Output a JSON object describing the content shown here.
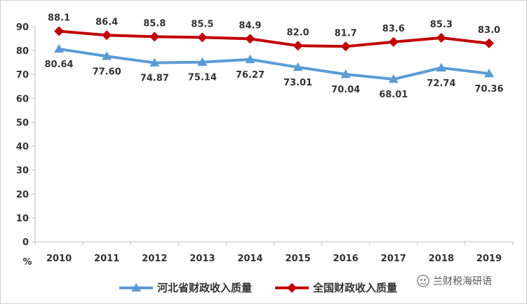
{
  "chart_data": {
    "type": "line",
    "title": "",
    "xlabel": "",
    "ylabel": "%",
    "ylim": [
      0,
      90
    ],
    "yticks": [
      0,
      10,
      20,
      30,
      40,
      50,
      60,
      70,
      80,
      90
    ],
    "categories": [
      "2010",
      "2011",
      "2012",
      "2013",
      "2014",
      "2015",
      "2016",
      "2017",
      "2018",
      "2019"
    ],
    "grid": false,
    "legend_position": "bottom",
    "series": [
      {
        "name": "河北省财政收入质量",
        "values": [
          80.64,
          77.6,
          74.87,
          75.14,
          76.27,
          73.01,
          70.04,
          68.01,
          72.74,
          70.36
        ],
        "labels": [
          "80.64",
          "77.60",
          "74.87",
          "75.14",
          "76.27",
          "73.01",
          "70.04",
          "68.01",
          "72.74",
          "70.36"
        ],
        "color": "#5b9bd5",
        "marker": "triangle",
        "label_position": "below"
      },
      {
        "name": "全国财政收入质量",
        "values": [
          88.1,
          86.4,
          85.8,
          85.5,
          84.9,
          82.0,
          81.7,
          83.6,
          85.3,
          83.0
        ],
        "labels": [
          "88.1",
          "86.4",
          "85.8",
          "85.5",
          "84.9",
          "82.0",
          "81.7",
          "83.6",
          "85.3",
          "83.0"
        ],
        "color": "#c00000",
        "marker": "diamond",
        "label_position": "above"
      }
    ]
  },
  "watermark": {
    "text": "兰财税海研语",
    "icon": "wechat-icon"
  }
}
